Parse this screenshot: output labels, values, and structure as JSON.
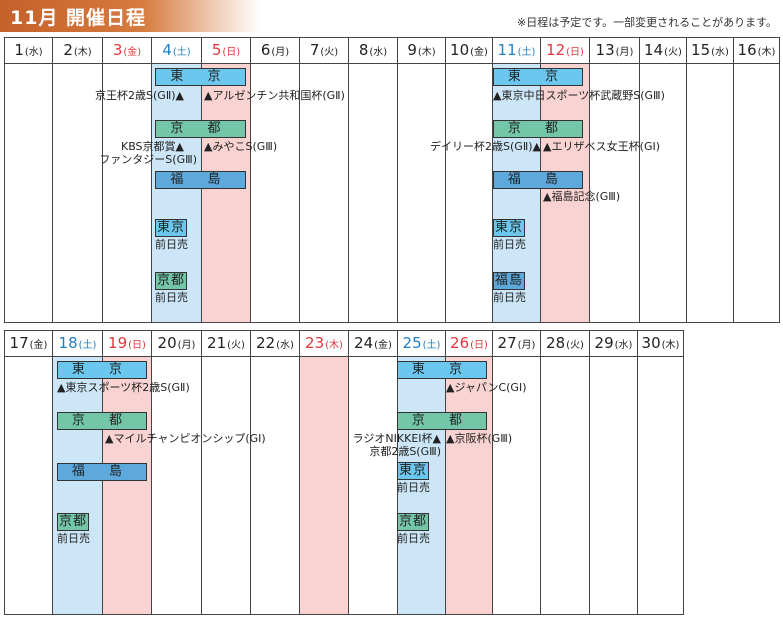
{
  "title": "11月 開催日程",
  "note": "※日程は予定です。一部変更されることがあります。",
  "venues": {
    "tokyo": "東 京",
    "kyoto": "京 都",
    "fukushima": "福 島"
  },
  "presale": {
    "tokyo": "東京",
    "kyoto": "京都",
    "fukushima": "福島",
    "label": "前日売"
  },
  "week1_days": [
    {
      "d": "1",
      "w": "(水)"
    },
    {
      "d": "2",
      "w": "(木)"
    },
    {
      "d": "3",
      "w": "(金)"
    },
    {
      "d": "4",
      "w": "(土)"
    },
    {
      "d": "5",
      "w": "(日)"
    },
    {
      "d": "6",
      "w": "(月)"
    },
    {
      "d": "7",
      "w": "(火)"
    },
    {
      "d": "8",
      "w": "(水)"
    },
    {
      "d": "9",
      "w": "(木)"
    },
    {
      "d": "10",
      "w": "(金)"
    },
    {
      "d": "11",
      "w": "(土)"
    },
    {
      "d": "12",
      "w": "(日)"
    },
    {
      "d": "13",
      "w": "(月)"
    },
    {
      "d": "14",
      "w": "(火)"
    },
    {
      "d": "15",
      "w": "(水)"
    },
    {
      "d": "16",
      "w": "(木)"
    }
  ],
  "week2_days": [
    {
      "d": "17",
      "w": "(金)"
    },
    {
      "d": "18",
      "w": "(土)"
    },
    {
      "d": "19",
      "w": "(日)"
    },
    {
      "d": "20",
      "w": "(月)"
    },
    {
      "d": "21",
      "w": "(火)"
    },
    {
      "d": "22",
      "w": "(水)"
    },
    {
      "d": "23",
      "w": "(木)"
    },
    {
      "d": "24",
      "w": "(金)"
    },
    {
      "d": "25",
      "w": "(土)"
    },
    {
      "d": "26",
      "w": "(日)"
    },
    {
      "d": "27",
      "w": "(月)"
    },
    {
      "d": "28",
      "w": "(火)"
    },
    {
      "d": "29",
      "w": "(水)"
    },
    {
      "d": "30",
      "w": "(木)"
    }
  ],
  "races": {
    "keio_hai": "京王杯2歳S(GⅡ)▲",
    "argentina": "▲アルゼンチン共和国杯(GⅡ)",
    "kbs": "KBS京都賞▲",
    "fantasy": "ファンタジーS(GⅢ)",
    "miyako": "▲みやこS(GⅢ)",
    "tokyo_chunichi": "▲東京中日スポーツ杯武蔵野S(GⅢ)",
    "daily": "デイリー杯2歳S(GⅡ)▲",
    "elizabeth": "▲エリザベス女王杯(GⅠ)",
    "fukushima_kinen": "▲福島記念(GⅢ)",
    "tokyo_sports": "▲東京スポーツ杯2歳S(GⅡ)",
    "mile_cs": "▲マイルチャンピオンシップ(GⅠ)",
    "japan_cup": "▲ジャパンC(GⅠ)",
    "radio_nikkei": "ラジオNIKKEI杯▲",
    "kyoto_2sai": "京都2歳S(GⅢ)",
    "keihan": "▲京阪杯(GⅢ)"
  }
}
